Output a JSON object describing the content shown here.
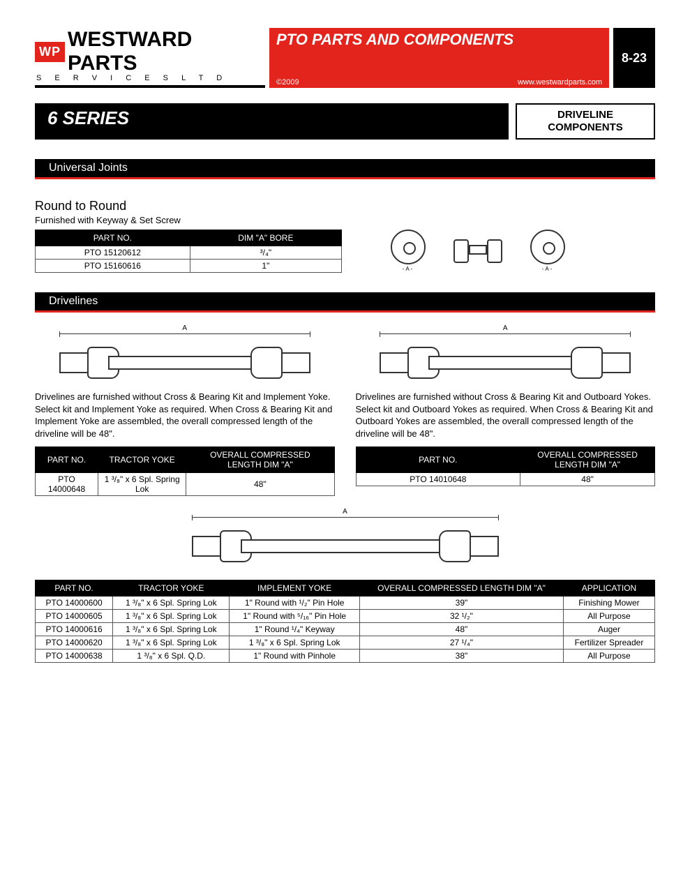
{
  "header": {
    "logo_badge": "WP",
    "logo_text": "WESTWARD PARTS",
    "logo_sub": "S  E  R  V  I  C  E  S        L  T  D",
    "title": "PTO PARTS AND COMPONENTS",
    "copyright": "©2009",
    "url": "www.westwardparts.com",
    "page_no": "8-23"
  },
  "series": "6 SERIES",
  "category": "DRIVELINE COMPONENTS",
  "section1": "Universal Joints",
  "rtr": {
    "title": "Round to Round",
    "note": "Furnished with Keyway & Set Screw",
    "cols": [
      "PART NO.",
      "DIM \"A\" BORE"
    ],
    "rows": [
      [
        "PTO 15120612",
        "³/₄\""
      ],
      [
        "PTO 15160616",
        "1\""
      ]
    ],
    "ring_label": "-A-"
  },
  "section2": "Drivelines",
  "dim_label": "A",
  "d1": {
    "para": "Drivelines are furnished without Cross & Bearing Kit and Implement Yoke. Select kit and Implement Yoke as required. When Cross & Bearing Kit and Implement Yoke are assembled, the overall compressed length of the driveline will be 48\".",
    "cols": [
      "PART NO.",
      "TRACTOR YOKE",
      "OVERALL COMPRESSED LENGTH DIM \"A\""
    ],
    "rows": [
      [
        "PTO 14000648",
        "1 ³/₈\" x 6 Spl. Spring Lok",
        "48\""
      ]
    ]
  },
  "d2": {
    "para": "Drivelines are furnished without Cross & Bearing Kit and Outboard Yokes. Select kit and Outboard Yokes as required. When Cross & Bearing Kit and Outboard Yokes are assembled, the overall compressed length of the driveline will be 48\".",
    "cols": [
      "PART NO.",
      "OVERALL COMPRESSED LENGTH DIM \"A\""
    ],
    "rows": [
      [
        "PTO 14010648",
        "48\""
      ]
    ]
  },
  "main": {
    "cols": [
      "PART NO.",
      "TRACTOR YOKE",
      "IMPLEMENT YOKE",
      "OVERALL COMPRESSED LENGTH DIM \"A\"",
      "APPLICATION"
    ],
    "rows": [
      [
        "PTO 14000600",
        "1 ³/₈\"  x 6 Spl. Spring Lok",
        "1\" Round with ¹/₂\" Pin Hole",
        "39\"",
        "Finishing Mower"
      ],
      [
        "PTO 14000605",
        "1 ³/₈\"  x 6 Spl. Spring Lok",
        "1\" Round with ⁵/₁₆\" Pin Hole",
        "32 ¹/₂\"",
        "All Purpose"
      ],
      [
        "PTO 14000616",
        "1 ³/₈\"  x 6 Spl. Spring Lok",
        "1\" Round ¹/₄\" Keyway",
        "48\"",
        "Auger"
      ],
      [
        "PTO 14000620",
        "1 ³/₈\"  x 6 Spl. Spring Lok",
        "1 ³/₈\" x 6 Spl. Spring Lok",
        "27 ¹/₄\"",
        "Fertilizer Spreader"
      ],
      [
        "PTO 14000638",
        "1 ³/₈\"  x 6 Spl. Q.D.",
        "1\" Round with Pinhole",
        "38\"",
        "All Purpose"
      ]
    ]
  },
  "colors": {
    "red": "#e2241d",
    "black": "#000000"
  }
}
